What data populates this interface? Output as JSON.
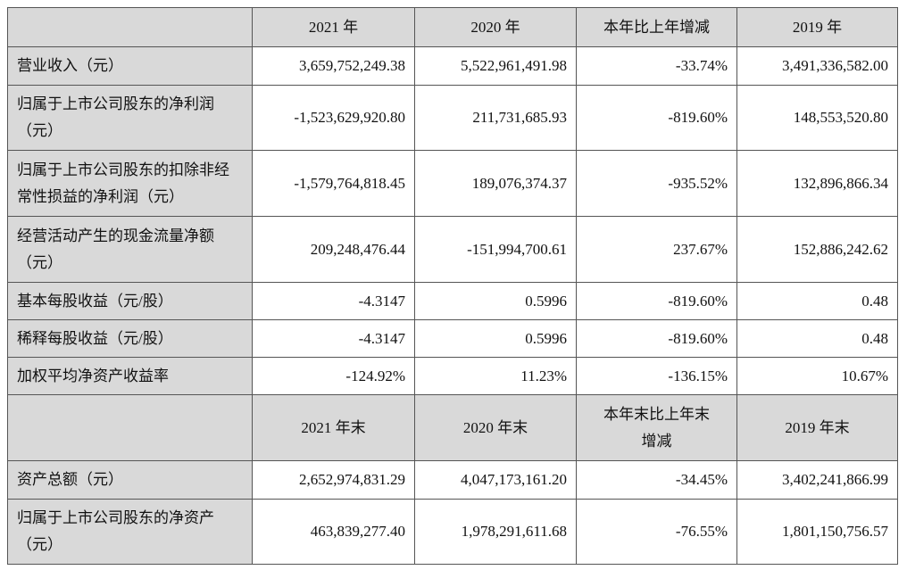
{
  "table": {
    "header1": [
      "2021 年",
      "2020 年",
      "本年比上年增减",
      "2019 年"
    ],
    "rows1": [
      [
        "营业收入（元）",
        "3,659,752,249.38",
        "5,522,961,491.98",
        "-33.74%",
        "3,491,336,582.00"
      ],
      [
        "归属于上市公司股东的净利润（元）",
        "-1,523,629,920.80",
        "211,731,685.93",
        "-819.60%",
        "148,553,520.80"
      ],
      [
        "归属于上市公司股东的扣除非经常性损益的净利润（元）",
        "-1,579,764,818.45",
        "189,076,374.37",
        "-935.52%",
        "132,896,866.34"
      ],
      [
        "经营活动产生的现金流量净额（元）",
        "209,248,476.44",
        "-151,994,700.61",
        "237.67%",
        "152,886,242.62"
      ],
      [
        "基本每股收益（元/股）",
        "-4.3147",
        "0.5996",
        "-819.60%",
        "0.48"
      ],
      [
        "稀释每股收益（元/股）",
        "-4.3147",
        "0.5996",
        "-819.60%",
        "0.48"
      ],
      [
        "加权平均净资产收益率",
        "-124.92%",
        "11.23%",
        "-136.15%",
        "10.67%"
      ]
    ],
    "header2": [
      "2021 年末",
      "2020 年末",
      "本年末比上年末增减",
      "2019 年末"
    ],
    "rows2": [
      [
        "资产总额（元）",
        "2,652,974,831.29",
        "4,047,173,161.20",
        "-34.45%",
        "3,402,241,866.99"
      ],
      [
        "归属于上市公司股东的净资产（元）",
        "463,839,277.40",
        "1,978,291,611.68",
        "-76.55%",
        "1,801,150,756.57"
      ]
    ]
  }
}
